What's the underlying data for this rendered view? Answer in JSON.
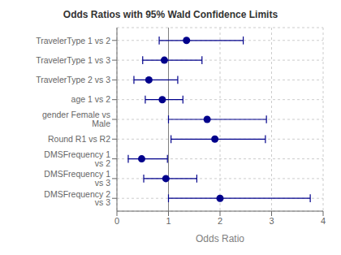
{
  "chart_data": {
    "type": "scatter",
    "title": "Odds Ratios with 95% Wald Confidence Limits",
    "xlabel": "Odds Ratio",
    "categories": [
      "TravelerType 1 vs 2",
      "TravelerType 1 vs 3",
      "TravelerType 2 vs 3",
      "age 1 vs 2",
      "gender Female vs Male",
      "Round R1 vs R2",
      "DMSFrequency 1 vs 2",
      "DMSFrequency 1 vs 3",
      "DMSFrequency 2 vs 3"
    ],
    "values": [
      1.35,
      0.92,
      0.62,
      0.88,
      1.75,
      1.9,
      0.48,
      0.95,
      2.0
    ],
    "ci_low": [
      0.82,
      0.5,
      0.33,
      0.55,
      1.0,
      1.05,
      0.22,
      0.52,
      1.0
    ],
    "ci_high": [
      2.45,
      1.65,
      1.18,
      1.28,
      2.9,
      2.88,
      0.98,
      1.55,
      3.75
    ],
    "xlim": [
      0,
      4
    ],
    "xticks": [
      0,
      1,
      2,
      3,
      4
    ],
    "reference_line": 1,
    "grid": true,
    "color": "#00008B"
  }
}
